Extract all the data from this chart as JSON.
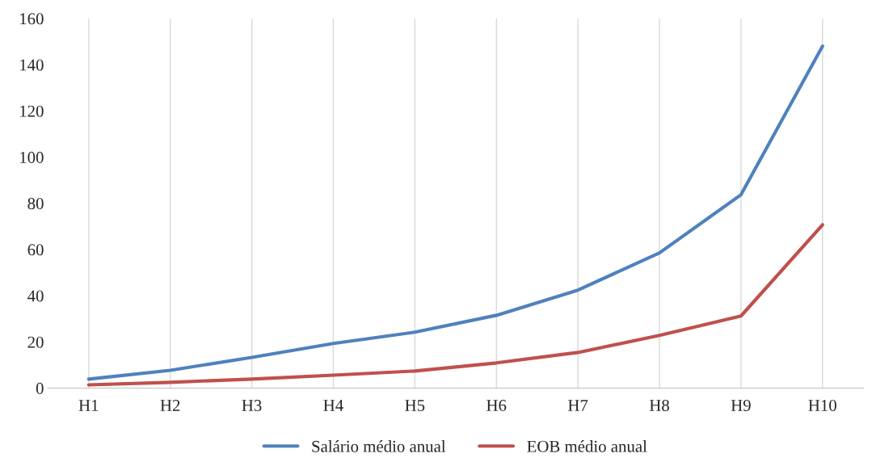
{
  "chart_data": {
    "type": "line",
    "categories": [
      "H1",
      "H2",
      "H3",
      "H4",
      "H5",
      "H6",
      "H7",
      "H8",
      "H9",
      "H10"
    ],
    "series": [
      {
        "name": "Salário médio anual",
        "color": "#4f81bd",
        "values": [
          3.9,
          7.7,
          13.3,
          19.3,
          24.2,
          31.5,
          42.4,
          58.5,
          83.7,
          148
        ]
      },
      {
        "name": "EOB médio anual",
        "color": "#c0504d",
        "values": [
          1.4,
          2.5,
          3.9,
          5.6,
          7.4,
          10.9,
          15.4,
          22.8,
          31.2,
          70.7
        ]
      }
    ],
    "ylim": [
      0,
      160
    ],
    "yticks": [
      0,
      20,
      40,
      60,
      80,
      100,
      120,
      140,
      160
    ],
    "grid": "x",
    "legend": "bottom",
    "marker": "none",
    "line_style": "solid"
  }
}
